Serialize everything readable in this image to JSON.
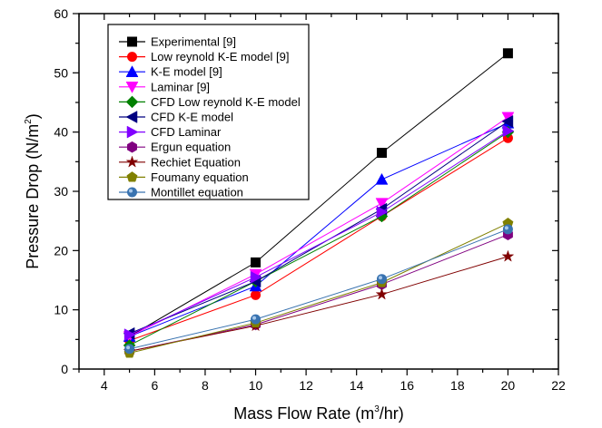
{
  "chart_data": {
    "type": "line",
    "title": "",
    "xlabel": "Mass Flow Rate (m",
    "xlabel_sup": "3",
    "xlabel_tail": "/hr)",
    "ylabel": "Pressure Drop (N/m",
    "ylabel_sup": "2",
    "ylabel_tail": ")",
    "xlim": [
      3,
      22
    ],
    "ylim": [
      0,
      60
    ],
    "xticks": [
      4,
      6,
      8,
      10,
      12,
      14,
      16,
      18,
      20,
      22
    ],
    "yticks": [
      0,
      10,
      20,
      30,
      40,
      50,
      60
    ],
    "grid": false,
    "legend_position": "top-left",
    "x": [
      5,
      10,
      15,
      20
    ],
    "series": [
      {
        "name": "Experimental [9]",
        "color": "#000000",
        "marker": "square",
        "values": [
          5.5,
          18.0,
          36.5,
          53.3
        ]
      },
      {
        "name": "Low reynold K-E model [9]",
        "color": "#ff0000",
        "marker": "circle",
        "values": [
          4.8,
          12.5,
          25.8,
          39.0
        ]
      },
      {
        "name": "K-E model [9]",
        "color": "#0000ff",
        "marker": "triangle-up",
        "values": [
          5.5,
          14.0,
          32.0,
          41.5
        ]
      },
      {
        "name": "Laminar [9]",
        "color": "#ff00ff",
        "marker": "triangle-down",
        "values": [
          5.5,
          16.0,
          28.0,
          42.5
        ]
      },
      {
        "name": "CFD Low reynold K-E model",
        "color": "#008000",
        "marker": "diamond",
        "values": [
          4.0,
          14.8,
          25.8,
          40.0
        ]
      },
      {
        "name": "CFD K-E model",
        "color": "#000080",
        "marker": "triangle-left",
        "values": [
          6.0,
          14.8,
          27.0,
          41.8
        ]
      },
      {
        "name": "CFD Laminar",
        "color": "#8000ff",
        "marker": "triangle-right",
        "values": [
          5.8,
          15.5,
          26.5,
          40.2
        ]
      },
      {
        "name": "Ergun equation",
        "color": "#800080",
        "marker": "hexagon",
        "values": [
          3.0,
          7.5,
          14.3,
          22.7
        ]
      },
      {
        "name": "Rechiet Equation",
        "color": "#800000",
        "marker": "star",
        "values": [
          3.0,
          7.3,
          12.6,
          19.0
        ]
      },
      {
        "name": "Foumany equation",
        "color": "#808000",
        "marker": "pentagon",
        "values": [
          2.7,
          7.8,
          14.6,
          24.6
        ]
      },
      {
        "name": "Montillet equation",
        "color": "#3973b0",
        "marker": "sphere",
        "values": [
          3.4,
          8.4,
          15.2,
          23.6
        ]
      }
    ]
  }
}
